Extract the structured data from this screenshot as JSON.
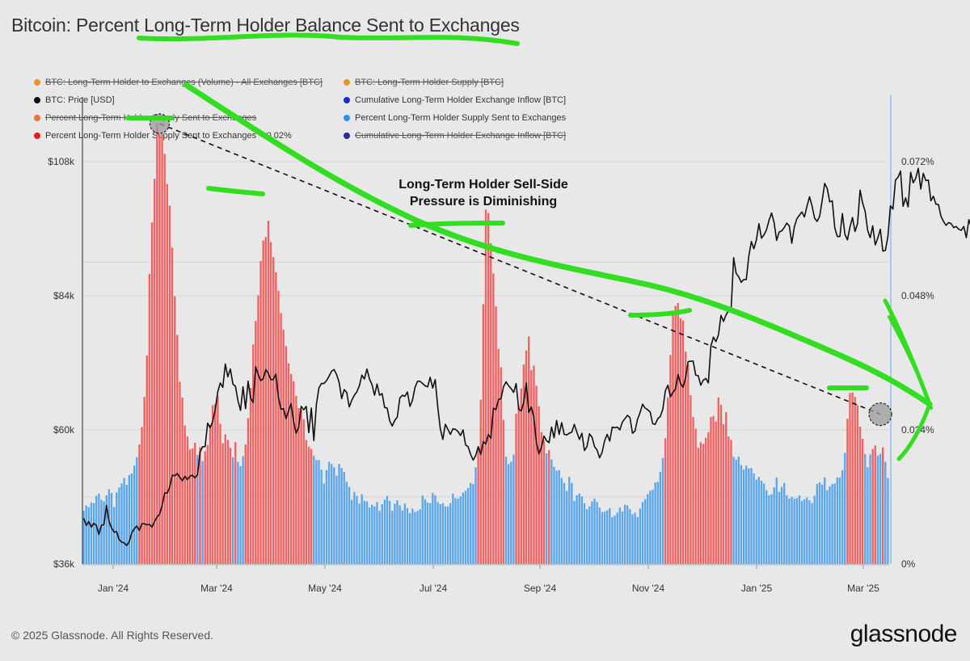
{
  "title": "Bitcoin: Percent Long-Term Holder Balance Sent to Exchanges",
  "footer": "© 2025 Glassnode. All Rights Reserved.",
  "brand": "glassnode",
  "annotation": "Long-Term Holder Sell-Side Pressure is Diminishing",
  "legend": [
    {
      "label": "BTC: Long-Term Holder to Exchanges (Volume) - All Exchanges [BTC]",
      "color": "#e8942a",
      "enabled": false
    },
    {
      "label": "BTC: Long-Term Holder Supply [BTC]",
      "color": "#e8942a",
      "enabled": false
    },
    {
      "label": "BTC: Price [USD]",
      "color": "#111111",
      "enabled": true
    },
    {
      "label": "Cumulative Long-Term Holder Exchange Inflow [BTC]",
      "color": "#1a2bd0",
      "enabled": true
    },
    {
      "label": "Percent Long-Term Holder Supply Sent to Exchanges",
      "color": "#e8743a",
      "enabled": false
    },
    {
      "label": "Percent Long-Term Holder Supply Sent to Exchanges",
      "color": "#2f8ff0",
      "enabled": true
    },
    {
      "label": "Percent Long-Term Holder Supply Sent to Exchanges < 0.02%",
      "color": "#e81818",
      "enabled": true
    },
    {
      "label": "Cumulative Long-Term Holder Exchange Inflow [BTC]",
      "color": "#2a2a9a",
      "enabled": false
    }
  ],
  "chart_data": {
    "type": "bar",
    "x_tick_labels": [
      "Jan '24",
      "Mar '24",
      "May '24",
      "Jul '24",
      "Sep '24",
      "Nov '24",
      "Jan '25",
      "Mar '25"
    ],
    "y_left_tick_labels": [
      "$108k",
      "$84k",
      "$60k",
      "$36k"
    ],
    "y_left_ticks": [
      108000,
      84000,
      60000,
      36000
    ],
    "y_right_tick_labels": [
      "0.072%",
      "0.048%",
      "0.024%",
      "0%"
    ],
    "y_right_ticks": [
      0.072,
      0.048,
      0.024,
      0
    ],
    "ylim_left": [
      36000,
      108000
    ],
    "ylim_right": [
      0,
      0.072
    ],
    "grid": true,
    "colors": {
      "bar_normal": "#5aa6ea",
      "bar_high": "#f06262",
      "price": "#111111",
      "trend": "#111111",
      "marker": "#999999"
    },
    "series": [
      {
        "name": "Percent Long-Term Holder Supply Sent to Exchanges",
        "axis": "right",
        "type": "bar",
        "values": [
          0.0095,
          0.0105,
          0.0102,
          0.011,
          0.0109,
          0.0122,
          0.0126,
          0.0115,
          0.0112,
          0.0123,
          0.0134,
          0.0127,
          0.0102,
          0.0128,
          0.0137,
          0.0144,
          0.0154,
          0.0142,
          0.0159,
          0.0162,
          0.0176,
          0.0191,
          0.0214,
          0.0245,
          0.0299,
          0.0373,
          0.0519,
          0.0611,
          0.0689,
          0.0788,
          0.0768,
          0.0768,
          0.0734,
          0.068,
          0.0641,
          0.0566,
          0.0479,
          0.041,
          0.0326,
          0.0298,
          0.0248,
          0.0228,
          0.0205,
          0.0207,
          0.0217,
          0.0195,
          0.0209,
          0.0184,
          0.0202,
          0.0213,
          0.0249,
          0.0284,
          0.0286,
          0.0301,
          0.0251,
          0.0216,
          0.0232,
          0.0222,
          0.0208,
          0.0191,
          0.0218,
          0.0183,
          0.0175,
          0.0193,
          0.0214,
          0.0261,
          0.0315,
          0.0393,
          0.0435,
          0.0481,
          0.0542,
          0.0579,
          0.0585,
          0.0614,
          0.0576,
          0.0549,
          0.0522,
          0.0489,
          0.0449,
          0.0419,
          0.039,
          0.0359,
          0.034,
          0.0327,
          0.0301,
          0.0279,
          0.0276,
          0.0259,
          0.0222,
          0.021,
          0.0206,
          0.0194,
          0.0186,
          0.0186,
          0.0169,
          0.0144,
          0.0168,
          0.0183,
          0.0179,
          0.0173,
          0.0158,
          0.0179,
          0.0172,
          0.0165,
          0.0147,
          0.0138,
          0.0115,
          0.0129,
          0.0122,
          0.0108,
          0.0125,
          0.0113,
          0.0112,
          0.0101,
          0.0106,
          0.0103,
          0.0111,
          0.0095,
          0.0107,
          0.0115,
          0.0122,
          0.0113,
          0.0095,
          0.0108,
          0.0114,
          0.0105,
          0.0096,
          0.0108,
          0.01,
          0.0091,
          0.0099,
          0.0093,
          0.0095,
          0.0098,
          0.0123,
          0.0116,
          0.011,
          0.0109,
          0.0127,
          0.0123,
          0.0111,
          0.0107,
          0.0109,
          0.0103,
          0.0103,
          0.0109,
          0.0126,
          0.0118,
          0.0117,
          0.0121,
          0.0128,
          0.0131,
          0.0136,
          0.0145,
          0.0143,
          0.0173,
          0.0205,
          0.0294,
          0.0465,
          0.0634,
          0.0628,
          0.0574,
          0.052,
          0.0461,
          0.0385,
          0.0352,
          0.0258,
          0.0192,
          0.0179,
          0.0183,
          0.0196,
          0.0269,
          0.0284,
          0.0314,
          0.0357,
          0.0382,
          0.0407,
          0.0347,
          0.0355,
          0.0319,
          0.0282,
          0.0236,
          0.0221,
          0.0198,
          0.0204,
          0.0187,
          0.0174,
          0.0167,
          0.0168,
          0.0154,
          0.0145,
          0.0131,
          0.0156,
          0.0145,
          0.0113,
          0.0123,
          0.0126,
          0.0121,
          0.0109,
          0.0098,
          0.0103,
          0.0112,
          0.0117,
          0.0111,
          0.0101,
          0.0093,
          0.0094,
          0.0096,
          0.01,
          0.0084,
          0.0087,
          0.0092,
          0.0101,
          0.0094,
          0.0106,
          0.0105,
          0.0098,
          0.0089,
          0.0092,
          0.0084,
          0.0099,
          0.0111,
          0.0116,
          0.0125,
          0.0131,
          0.0133,
          0.0146,
          0.0147,
          0.0165,
          0.019,
          0.0225,
          0.0298,
          0.0374,
          0.0447,
          0.0462,
          0.0467,
          0.044,
          0.0436,
          0.038,
          0.0357,
          0.0302,
          0.0263,
          0.0242,
          0.0208,
          0.0218,
          0.0215,
          0.0226,
          0.0236,
          0.0263,
          0.0265,
          0.0255,
          0.0298,
          0.0285,
          0.025,
          0.0272,
          0.0228,
          0.0222,
          0.0192,
          0.0187,
          0.0192,
          0.0177,
          0.0169,
          0.0176,
          0.0171,
          0.0172,
          0.0162,
          0.0151,
          0.0156,
          0.0149,
          0.0144,
          0.0132,
          0.0123,
          0.0125,
          0.0137,
          0.0155,
          0.0129,
          0.0138,
          0.0145,
          0.0123,
          0.0117,
          0.012,
          0.0117,
          0.0118,
          0.0123,
          0.0113,
          0.0116,
          0.0119,
          0.0114,
          0.0109,
          0.0122,
          0.0143,
          0.0146,
          0.0142,
          0.0155,
          0.0132,
          0.0139,
          0.0143,
          0.0144,
          0.0155,
          0.0155,
          0.0168,
          0.0199,
          0.026,
          0.0306,
          0.0307,
          0.0299,
          0.0284,
          0.0246,
          0.0224,
          0.0197,
          0.0173,
          0.0196,
          0.0206,
          0.0212,
          0.0194,
          0.0197,
          0.0209,
          0.0183,
          0.0154
        ]
      },
      {
        "name": "BTC: Price [USD]",
        "axis": "left",
        "type": "line",
        "values": [
          44200,
          42900,
          43600,
          42600,
          43300,
          42900,
          41300,
          42900,
          43100,
          46500,
          43600,
          42500,
          41700,
          41800,
          40400,
          39900,
          39800,
          39300,
          40000,
          41600,
          42300,
          42800,
          42000,
          43200,
          43200,
          43000,
          43100,
          42600,
          43600,
          44400,
          44900,
          46500,
          48700,
          48700,
          49700,
          51900,
          51800,
          52200,
          51500,
          50900,
          51700,
          51100,
          51700,
          51900,
          51400,
          52000,
          56000,
          57000,
          57000,
          61200,
          60400,
          61500,
          63600,
          66800,
          68400,
          67600,
          71800,
          69500,
          70900,
          68200,
          67800,
          65200,
          63500,
          67700,
          63800,
          68700,
          65700,
          64900,
          71300,
          69900,
          68800,
          69200,
          70800,
          70100,
          69000,
          69000,
          70000,
          65800,
          63700,
          63800,
          62000,
          63400,
          64700,
          61500,
          59400,
          60500,
          64200,
          63600,
          64200,
          59500,
          63900,
          58100,
          64500,
          67500,
          68300,
          68300,
          68800,
          69600,
          70500,
          70800,
          69900,
          68500,
          65600,
          67200,
          66700,
          64100,
          65300,
          66200,
          66800,
          67900,
          69800,
          69100,
          70900,
          69100,
          68100,
          66200,
          68200,
          66200,
          66500,
          64000,
          63900,
          61600,
          60700,
          61700,
          62300,
          65700,
          66200,
          66000,
          66800,
          64200,
          65300,
          67600,
          68700,
          68700,
          68300,
          67900,
          67700,
          69400,
          67500,
          69000,
          64100,
          60200,
          58300,
          61000,
          60100,
          59200,
          60200,
          60100,
          59700,
          59000,
          60000,
          57300,
          57000,
          55600,
          54600,
          55400,
          57000,
          55600,
          57900,
          57500,
          59200,
          58500,
          63900,
          63600,
          65400,
          65600,
          67700,
          68600,
          67900,
          67400,
          66700,
          68300,
          63700,
          63400,
          64900,
          68400,
          63100,
          64100,
          62300,
          57700,
          55700,
          56900,
          58900,
          58100,
          57700,
          60500,
          58600,
          61700,
          59200,
          61300,
          59200,
          59100,
          59400,
          59600,
          61000,
          59600,
          58300,
          59400,
          56300,
          57000,
          59300,
          58700,
          57000,
          56400,
          55000,
          56000,
          58100,
          59200,
          58000,
          60500,
          60400,
          60500,
          60000,
          61400,
          62000,
          62600,
          62200,
          59400,
          59800,
          61900,
          63100,
          64600,
          63900,
          63600,
          63200,
          61100,
          61000,
          62000,
          62400,
          63700,
          67000,
          68000,
          65900,
          66700,
          67300,
          69900,
          68300,
          67600,
          69300,
          72200,
          72300,
          72300,
          69800,
          69700,
          68000,
          68900,
          69200,
          68400,
          75000,
          76600,
          75800,
          77000,
          80500,
          79400,
          80600,
          81300,
          81500,
          90800,
          88000,
          87400,
          86400,
          86900,
          86900,
          91100,
          93700,
          92400,
          94000,
          96900,
          94300,
          94900,
          95800,
          97500,
          98800,
          97100,
          93900,
          95400,
          95600,
          96200,
          97000,
          96500,
          93400,
          96300,
          97800,
          98400,
          99000,
          98100,
          100000,
          101700,
          100100,
          97900,
          97300,
          98200,
          101000,
          104100,
          103200,
          100800,
          101000,
          96100,
          94600,
          94600,
          98700,
          95000,
          94000,
          96300,
          98000,
          95500,
          96900,
          102900,
          100600,
          99100,
          95700,
          94400,
          96500,
          93100,
          94300,
          95900,
          92000,
          92100,
          94600,
          100100,
          99500,
          104700,
          105200,
          106300,
          100000,
          101500,
          99900,
          106100,
          104200,
          105000,
          106800,
          103100,
          105900,
          104600,
          104700,
          101000,
          101800,
          100400,
          100300,
          98200,
          97300,
          96600,
          97100,
          96900,
          96200,
          96400,
          95900,
          95700,
          96400,
          94400,
          97600,
          96300,
          96000,
          96000,
          96300,
          95500,
          92500,
          95400,
          89800,
          84200,
          84200,
          84700,
          84300,
          86800,
          84900,
          90400,
          84800,
          83500,
          82300,
          80600,
          78400,
          77100,
          82900,
          84600,
          82500,
          85100,
          84800,
          84600,
          85500,
          84200,
          84600
        ]
      }
    ],
    "trendline": {
      "from_index": 30,
      "to_index": 315,
      "from_value": 0.0788,
      "to_value": 0.0268
    }
  }
}
